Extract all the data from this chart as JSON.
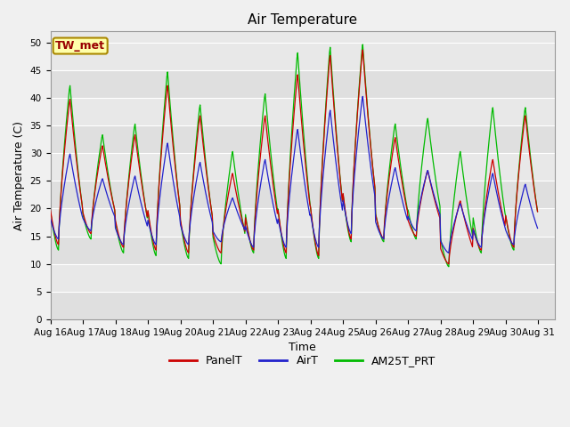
{
  "title": "Air Temperature",
  "ylabel": "Air Temperature (C)",
  "xlabel": "Time",
  "ylim": [
    0,
    52
  ],
  "yticks": [
    0,
    5,
    10,
    15,
    20,
    25,
    30,
    35,
    40,
    45,
    50
  ],
  "xtick_labels": [
    "Aug 16",
    "Aug 17",
    "Aug 18",
    "Aug 19",
    "Aug 20",
    "Aug 21",
    "Aug 22",
    "Aug 23",
    "Aug 24",
    "Aug 25",
    "Aug 26",
    "Aug 27",
    "Aug 28",
    "Aug 29",
    "Aug 30",
    "Aug 31"
  ],
  "station_label": "TW_met",
  "series_labels": [
    "PanelT",
    "AirT",
    "AM25T_PRT"
  ],
  "series_colors": [
    "#cc0000",
    "#2222cc",
    "#00bb00"
  ],
  "bg_color": "#e8e8e8",
  "fig_color": "#f0f0f0",
  "title_fontsize": 11,
  "axis_fontsize": 9,
  "tick_fontsize": 7.5,
  "legend_fontsize": 9,
  "day_peaks_panel": [
    40.0,
    31.5,
    33.5,
    42.5,
    37.0,
    26.5,
    37.0,
    44.5,
    48.0,
    49.0,
    33.0,
    27.0,
    21.5,
    29.0,
    37.0
  ],
  "day_mins_panel": [
    13.5,
    15.5,
    13.0,
    12.5,
    12.0,
    12.0,
    12.5,
    12.0,
    11.5,
    14.5,
    14.5,
    15.0,
    10.0,
    12.5,
    13.0
  ],
  "day_peaks_air": [
    30.0,
    25.5,
    26.0,
    32.0,
    28.5,
    22.0,
    29.0,
    34.5,
    38.0,
    40.5,
    27.5,
    27.0,
    21.0,
    26.5,
    24.5
  ],
  "day_mins_air": [
    14.5,
    16.0,
    13.5,
    13.5,
    13.5,
    14.0,
    13.0,
    13.0,
    13.0,
    15.5,
    14.5,
    16.0,
    12.0,
    13.0,
    13.5
  ],
  "day_peaks_am25": [
    42.5,
    33.5,
    35.5,
    45.0,
    39.0,
    30.5,
    41.0,
    48.5,
    49.5,
    50.0,
    35.5,
    36.5,
    30.5,
    38.5,
    38.5
  ],
  "day_mins_am25": [
    12.5,
    14.5,
    12.0,
    11.5,
    11.0,
    10.0,
    12.0,
    11.0,
    11.0,
    14.0,
    14.0,
    14.5,
    9.5,
    12.0,
    12.5
  ]
}
